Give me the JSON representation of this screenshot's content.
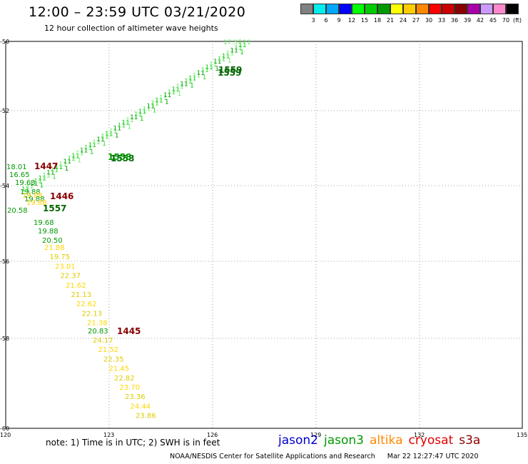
{
  "title": "12:00 – 23:59 UTC 03/21/2020",
  "subtitle": "12 hour collection of altimeter wave heights",
  "scale": {
    "colors": [
      "#808080",
      "#00eeee",
      "#00a8ff",
      "#0000ff",
      "#00ff00",
      "#00cc00",
      "#009900",
      "#ffff00",
      "#ffcc00",
      "#ff8800",
      "#ff0000",
      "#cc0000",
      "#880000",
      "#aa00aa",
      "#cc99ff",
      "#ff88cc",
      "#000000"
    ],
    "labels": [
      "3",
      "6",
      "9",
      "12",
      "15",
      "18",
      "21",
      "24",
      "27",
      "30",
      "33",
      "36",
      "39",
      "42",
      "45",
      "70"
    ],
    "unit": "(ft)"
  },
  "axes": {
    "lon_ticks": [
      "120",
      "123",
      "126",
      "129",
      "132",
      "135"
    ],
    "lat_ticks": [
      "-50",
      "-52",
      "-54",
      "-56",
      "-58",
      "-60"
    ]
  },
  "tracks": {
    "jason3_values": [
      "18.01",
      "16.65",
      "19.63",
      "19.68",
      "19.88",
      "20.50",
      "20.83",
      "20.58"
    ],
    "altika_values": [
      "21.88",
      "19.75",
      "23.01",
      "22.37",
      "21.62",
      "21.13",
      "22.62",
      "22.13",
      "21.38",
      "24.17",
      "21.52",
      "22.35",
      "21.45",
      "22.82",
      "23.70",
      "23.36",
      "24.44",
      "23.86"
    ],
    "time_labels": [
      {
        "text": "1447",
        "color": "#880000"
      },
      {
        "text": "1446",
        "color": "#880000"
      },
      {
        "text": "1445",
        "color": "#880000"
      },
      {
        "text": "1558",
        "color": "#006600"
      },
      {
        "text": "1559",
        "color": "#006600"
      },
      {
        "text": "1557",
        "color": "#006600"
      }
    ],
    "top_right_value": "17.37"
  },
  "note": "note:  1) Time is in UTC;  2) SWH is in feet",
  "legend": [
    {
      "name": "jason2",
      "color": "#0000cc"
    },
    {
      "name": "jason3",
      "color": "#009900"
    },
    {
      "name": "altika",
      "color": "#ff8800"
    },
    {
      "name": "cryosat",
      "color": "#dd0000"
    },
    {
      "name": "s3a",
      "color": "#880000"
    }
  ],
  "credit": "NOAA/NESDIS Center for Satellite Applications and Research",
  "timestamp": "Mar 22 12:27:47 UTC 2020"
}
